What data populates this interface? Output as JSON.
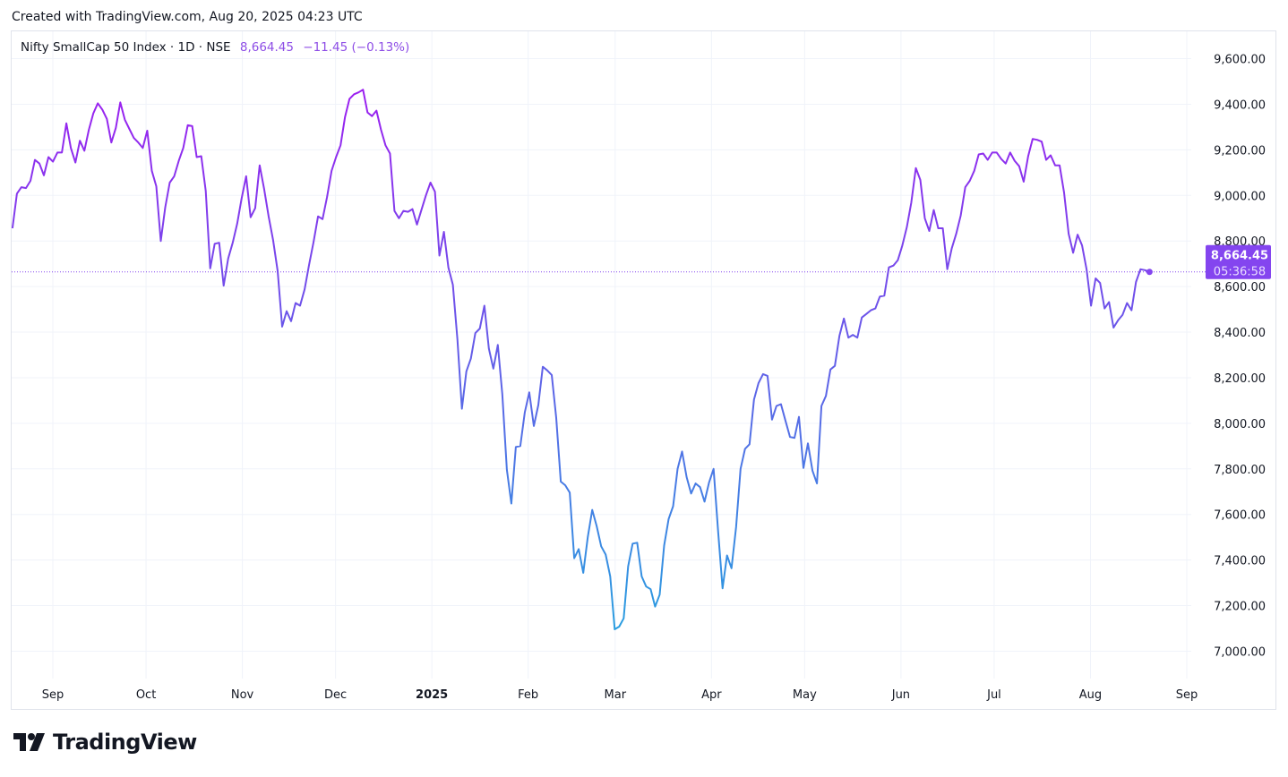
{
  "header": {
    "created_text": "Created with TradingView.com, Aug 20, 2025 04:23 UTC",
    "symbol": "Nifty SmallCap 50 Index · 1D · NSE",
    "last_price": "8,664.45",
    "change": "−11.45 (−0.13%)"
  },
  "price_label": {
    "price": "8,664.45",
    "countdown": "05:36:58"
  },
  "logo_text": "TradingView",
  "colors": {
    "line_top": "#9c1ff0",
    "line_bottom": "#2a9de0",
    "label_bg": "#8445ef",
    "grid": "#f0f3fa"
  },
  "chart_data": {
    "type": "line",
    "title": "Nifty SmallCap 50 Index · 1D · NSE",
    "ylim": [
      6880,
      9720
    ],
    "yticks": [
      7000,
      7200,
      7400,
      7600,
      7800,
      8000,
      8200,
      8400,
      8600,
      8800,
      9000,
      9200,
      9400,
      9600
    ],
    "ytick_labels": [
      "7,000.00",
      "7,200.00",
      "7,400.00",
      "7,600.00",
      "7,800.00",
      "8,000.00",
      "8,200.00",
      "8,400.00",
      "8,600.00",
      "8,800.00",
      "9,000.00",
      "9,200.00",
      "9,400.00",
      "9,600.00"
    ],
    "xticks": [
      {
        "date": "2024-09-01",
        "label": "Sep"
      },
      {
        "date": "2024-10-01",
        "label": "Oct"
      },
      {
        "date": "2024-11-01",
        "label": "Nov"
      },
      {
        "date": "2024-12-01",
        "label": "Dec"
      },
      {
        "date": "2025-01-01",
        "label": "2025",
        "bold": true
      },
      {
        "date": "2025-02-01",
        "label": "Feb"
      },
      {
        "date": "2025-03-01",
        "label": "Mar"
      },
      {
        "date": "2025-04-01",
        "label": "Apr"
      },
      {
        "date": "2025-05-01",
        "label": "May"
      },
      {
        "date": "2025-06-01",
        "label": "Jun"
      },
      {
        "date": "2025-07-01",
        "label": "Jul"
      },
      {
        "date": "2025-08-01",
        "label": "Aug"
      },
      {
        "date": "2025-09-01",
        "label": "Sep"
      }
    ],
    "date_range": [
      "2024-08-19",
      "2025-08-20"
    ],
    "grid": true,
    "last_value": 8664.45,
    "values": [
      8856,
      9008,
      9036,
      9032,
      9064,
      9156,
      9140,
      9088,
      9168,
      9148,
      9188,
      9188,
      9316,
      9208,
      9144,
      9240,
      9196,
      9288,
      9360,
      9404,
      9376,
      9336,
      9232,
      9296,
      9408,
      9332,
      9292,
      9252,
      9232,
      9208,
      9284,
      9108,
      9040,
      8800,
      8948,
      9056,
      9084,
      9152,
      9208,
      9308,
      9304,
      9168,
      9172,
      9020,
      8680,
      8788,
      8792,
      8604,
      8724,
      8792,
      8876,
      8988,
      9084,
      8904,
      8944,
      9132,
      9028,
      8908,
      8804,
      8668,
      8424,
      8492,
      8448,
      8528,
      8516,
      8588,
      8696,
      8796,
      8908,
      8896,
      8992,
      9108,
      9168,
      9220,
      9344,
      9424,
      9444,
      9452,
      9464,
      9364,
      9348,
      9372,
      9288,
      9220,
      9184,
      8932,
      8900,
      8932,
      8928,
      8940,
      8872,
      8936,
      9000,
      9056,
      9016,
      8736,
      8840,
      8684,
      8608,
      8368,
      8064,
      8228,
      8284,
      8396,
      8416,
      8516,
      8328,
      8240,
      8344,
      8128,
      7796,
      7648,
      7896,
      7900,
      8048,
      8136,
      7988,
      8080,
      8248,
      8232,
      8212,
      8024,
      7744,
      7728,
      7696,
      7408,
      7448,
      7344,
      7500,
      7620,
      7548,
      7460,
      7424,
      7328,
      7096,
      7108,
      7144,
      7372,
      7472,
      7476,
      7328,
      7284,
      7272,
      7196,
      7248,
      7464,
      7580,
      7636,
      7800,
      7876,
      7764,
      7692,
      7736,
      7720,
      7656,
      7740,
      7800,
      7528,
      7276,
      7420,
      7364,
      7544,
      7800,
      7888,
      7908,
      8104,
      8176,
      8216,
      8208,
      8016,
      8076,
      8084,
      8012,
      7940,
      7936,
      8028,
      7804,
      7912,
      7792,
      7736,
      8076,
      8120,
      8236,
      8252,
      8384,
      8460,
      8376,
      8388,
      8376,
      8464,
      8480,
      8496,
      8504,
      8556,
      8560,
      8684,
      8692,
      8716,
      8780,
      8860,
      8968,
      9120,
      9068,
      8900,
      8844,
      8936,
      8856,
      8856,
      8676,
      8768,
      8832,
      8912,
      9036,
      9064,
      9108,
      9180,
      9184,
      9156,
      9188,
      9188,
      9160,
      9140,
      9188,
      9152,
      9128,
      9060,
      9172,
      9248,
      9244,
      9236,
      9156,
      9176,
      9132,
      9132,
      9012,
      8832,
      8748,
      8828,
      8780,
      8676,
      8516,
      8636,
      8616,
      8504,
      8532,
      8420,
      8452,
      8476,
      8528,
      8496,
      8620,
      8676,
      8672,
      8664.45
    ]
  }
}
